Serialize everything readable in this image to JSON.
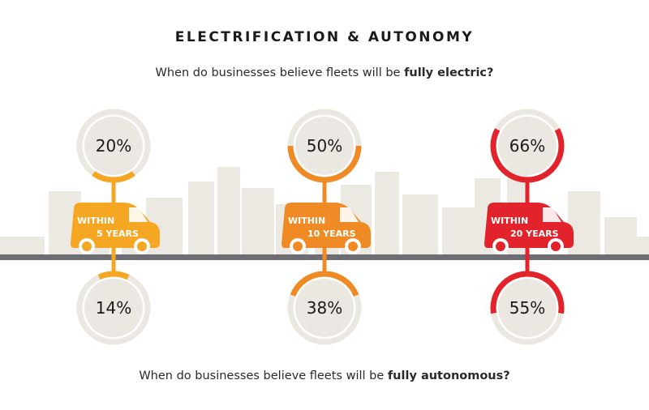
{
  "title": "ELECTRIFICATION & AUTONOMY",
  "question_top": {
    "prefix": "When do businesses believe fleets will be ",
    "emphasis": "fully electric?"
  },
  "question_bottom": {
    "prefix": "When do businesses believe fleets will be ",
    "emphasis": "fully autonomous?"
  },
  "colors": {
    "within_5_years": "#f5a623",
    "within_10_years": "#f08a24",
    "within_20_years": "#e3232c",
    "track": "#ebe8e1",
    "road": "#6d6e73",
    "skyline": "#ece9e3"
  },
  "chart_data": {
    "type": "bar",
    "categories": [
      "WITHIN 5 YEARS",
      "WITHIN 10 YEARS",
      "WITHIN 20 YEARS"
    ],
    "category_lines": [
      [
        "WITHIN",
        "5 YEARS"
      ],
      [
        "WITHIN",
        "10 YEARS"
      ],
      [
        "WITHIN",
        "20 YEARS"
      ]
    ],
    "series": [
      {
        "key": "fully_electric",
        "values": [
          20,
          50,
          66
        ],
        "labels": [
          "20%",
          "50%",
          "66%"
        ]
      },
      {
        "key": "fully_autonomous",
        "values": [
          14,
          38,
          55
        ],
        "labels": [
          "14%",
          "38%",
          "55%"
        ]
      }
    ],
    "unit": "%",
    "ylim": [
      0,
      100
    ]
  }
}
